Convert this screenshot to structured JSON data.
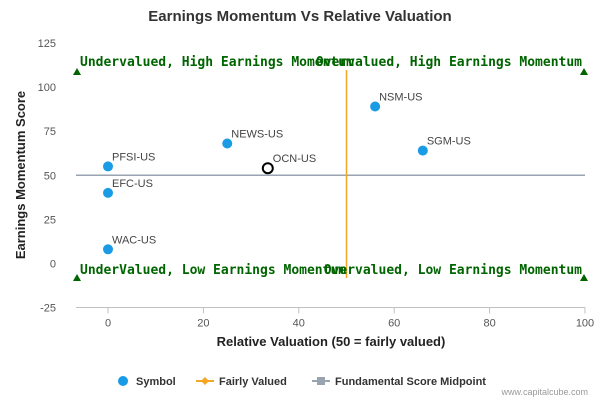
{
  "chart_data": {
    "type": "scatter",
    "title": "Earnings Momentum Vs Relative Valuation",
    "xlabel": "Relative Valuation (50 = fairly valued)",
    "ylabel": "Earnings Momentum Score",
    "xlim": [
      -8,
      100
    ],
    "ylim": [
      -25,
      125
    ],
    "xticks": [
      0,
      20,
      40,
      60,
      80,
      100
    ],
    "yticks": [
      -25,
      0,
      25,
      50,
      75,
      100,
      125
    ],
    "series": [
      {
        "name": "Symbol",
        "color": "#1a9be6",
        "points": [
          {
            "label": "NSM-US",
            "x": 56,
            "y": 89
          },
          {
            "label": "SGM-US",
            "x": 66,
            "y": 64
          },
          {
            "label": "NEWS-US",
            "x": 25,
            "y": 68
          },
          {
            "label": "PFSI-US",
            "x": 0,
            "y": 55
          },
          {
            "label": "EFC-US",
            "x": 0,
            "y": 40
          },
          {
            "label": "WAC-US",
            "x": 0,
            "y": 8
          }
        ]
      }
    ],
    "highlight": {
      "label": "OCN-US",
      "x": 33.5,
      "y": 54
    },
    "fairly_valued": {
      "name": "Fairly Valued",
      "x": 50,
      "color": "#f5a623"
    },
    "midpoint": {
      "name": "Fundamental Score Midpoint",
      "y": 50,
      "color": "#9aa3b0"
    },
    "quadrant_labels": [
      {
        "text": "Undervalued, High Earnings Momentum",
        "pos": "top-left"
      },
      {
        "text": "Overvalued, High Earnings Momentum",
        "pos": "top-right"
      },
      {
        "text": "UnderValued, Low Earnings Momentum",
        "pos": "bottom-left"
      },
      {
        "text": "Overvalued, Low Earnings Momentum",
        "pos": "bottom-right"
      }
    ],
    "legend_position": "bottom",
    "grid": false
  },
  "credit": "www.capitalcube.com"
}
